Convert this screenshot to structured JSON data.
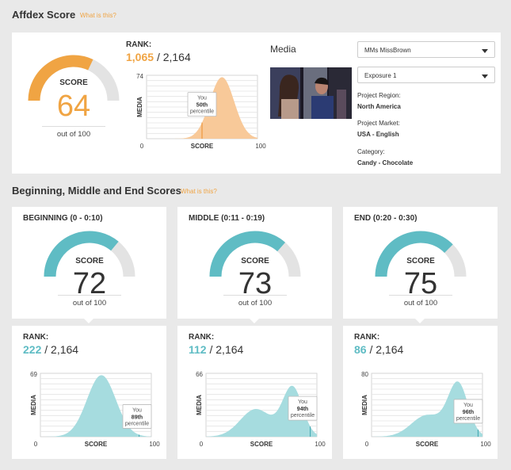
{
  "header": {
    "title": "Affdex Score",
    "what_link": "What is this?"
  },
  "overall": {
    "score_label": "SCORE",
    "score": "64",
    "score_value": 64,
    "out_of": "out of 100",
    "rank_label": "RANK:",
    "rank": "1,065",
    "rank_total": "/ 2,164",
    "chart": {
      "ymax": "74",
      "ylabel": "MEDIA",
      "xlabel": "SCORE",
      "xmin": "0",
      "xmax": "100",
      "tip_you": "You",
      "tip_pct": "50th",
      "tip_word": "percentile",
      "percentile_value": 50
    }
  },
  "media": {
    "title": "Media",
    "selects": [
      {
        "value": "MMs MissBrown"
      },
      {
        "value": "Exposure 1"
      }
    ],
    "project_region_label": "Project Region:",
    "project_region": "North America",
    "project_market_label": "Project Market:",
    "project_market": "USA - English",
    "category_label": "Category:",
    "category": "Candy - Chocolate"
  },
  "segments_header": {
    "title": "Beginning, Middle and End Scores",
    "what_link": "What is this?"
  },
  "segments": [
    {
      "title": "BEGINNING (0 - 0:10)",
      "score_label": "SCORE",
      "score": "72",
      "score_value": 72,
      "out_of": "out of 100",
      "rank_label": "RANK:",
      "rank": "222",
      "rank_total": "/ 2,164",
      "chart": {
        "ymax": "69",
        "ylabel": "MEDIA",
        "xlabel": "SCORE",
        "xmin": "0",
        "xmax": "100",
        "tip_you": "You",
        "tip_pct": "89th",
        "tip_word": "percentile",
        "percentile_value": 89
      }
    },
    {
      "title": "MIDDLE (0:11 - 0:19)",
      "score_label": "SCORE",
      "score": "73",
      "score_value": 73,
      "out_of": "out of 100",
      "rank_label": "RANK:",
      "rank": "112",
      "rank_total": "/ 2,164",
      "chart": {
        "ymax": "66",
        "ylabel": "MEDIA",
        "xlabel": "SCORE",
        "xmin": "0",
        "xmax": "100",
        "tip_you": "You",
        "tip_pct": "94th",
        "tip_word": "percentile",
        "percentile_value": 94
      }
    },
    {
      "title": "END (0:20 - 0:30)",
      "score_label": "SCORE",
      "score": "75",
      "score_value": 75,
      "out_of": "out of 100",
      "rank_label": "RANK:",
      "rank": "86",
      "rank_total": "/ 2,164",
      "chart": {
        "ymax": "80",
        "ylabel": "MEDIA",
        "xlabel": "SCORE",
        "xmin": "0",
        "xmax": "100",
        "tip_you": "You",
        "tip_pct": "96th",
        "tip_word": "percentile",
        "percentile_value": 96
      }
    }
  ],
  "colors": {
    "orange": "#f0a443",
    "orange_fill": "#f8c999",
    "orange_line": "#ec8d2c",
    "teal": "#5fbcc4",
    "teal_fill": "#a6dcdf",
    "teal_line": "#3ea5ae",
    "gauge_bg": "#e3e3e3"
  },
  "icons": {
    "dropdown": "caret-down-icon"
  }
}
